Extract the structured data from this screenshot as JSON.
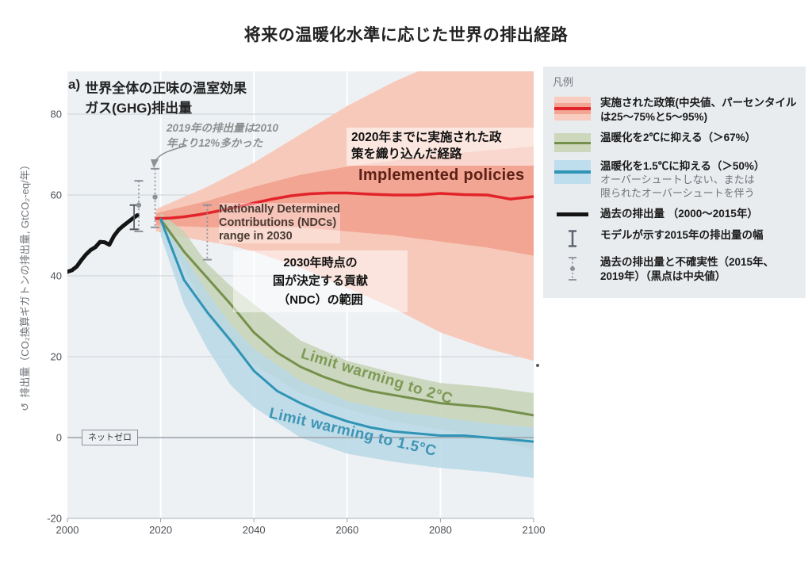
{
  "title": "将来の温暖化水準に応じた世界の排出経路",
  "panel": {
    "prefix": "a)",
    "title": "世界全体の正味の温室効果\nガス(GHG)排出量"
  },
  "annotations": {
    "note_2019": "2019年の排出量は2010\n年より12%多かった",
    "implemented_policies_jp": "2020年までに実施された政\n策を織り込んだ経路",
    "implemented_policies_en": "Implemented policies",
    "ndc_en": "Nationally Determined\nContributions (NDCs)\nrange in 2030",
    "ndc_jp": "2030年時点の\n国が決定する貢献\n（NDC）の範囲",
    "limit_2c": "Limit warming to 2°C",
    "limit_1_5c": "Limit warming to 1.5°C",
    "net_zero": "ネットゼロ"
  },
  "legend": {
    "title": "凡例",
    "items": [
      {
        "label": "実施された政策(中央値、パーセンタイル\nは25～75%と5～95%)"
      },
      {
        "label": "温暖化を2℃に抑える（＞67%）"
      },
      {
        "label": "温暖化を1.5℃に抑える（＞50%）",
        "sub": "オーバーシュートしない、または\n限られたオーバーシュートを伴う"
      },
      {
        "label": "過去の排出量 （2000～2015年）"
      },
      {
        "label": "モデルが示す2015年の排出量の幅"
      },
      {
        "label": "過去の排出量と不確実性（2015年、\n2019年）（黒点は中央値）"
      }
    ]
  },
  "colors": {
    "red_line": "#e2232a",
    "red_band_outer": "#f7c9ba",
    "red_band_inner": "#f1a592",
    "green_line": "#74904a",
    "green_band": "#c6d2b5",
    "blue_line": "#2f94b5",
    "blue_band": "#b7d8e6",
    "historical": "#141414",
    "plot_bg": "#edf1f4",
    "grid": "#ccd1d6",
    "zero_line": "#9aa0a8",
    "tick_text": "#4d5156"
  },
  "chart_data": {
    "type": "line",
    "title": "将来の温暖化水準に応じた世界の排出経路",
    "xlabel": "",
    "ylabel": "排出量（CO₂換算ギガトンの排出量, GtCO₂-eq/年）",
    "xlim": [
      2000,
      2100
    ],
    "ylim": [
      -20,
      90
    ],
    "x_ticks": [
      2000,
      2020,
      2040,
      2060,
      2080,
      2100
    ],
    "y_ticks": [
      -20,
      0,
      20,
      40,
      60,
      80
    ],
    "grid": true,
    "legend_position": "right",
    "series": [
      {
        "name": "過去の排出量（2000～2015年）",
        "color": "#141414",
        "width": 5,
        "x": [
          2000,
          2001,
          2002,
          2003,
          2004,
          2005,
          2006,
          2007,
          2008,
          2009,
          2010,
          2011,
          2012,
          2013,
          2014,
          2015
        ],
        "y": [
          41,
          41.4,
          42.3,
          43.9,
          45.3,
          46.4,
          47.1,
          48.4,
          48.3,
          47.7,
          49.9,
          51.4,
          52.4,
          53.3,
          54.2,
          55
        ]
      },
      {
        "name": "実施された政策（Implemented policies, 中央値）",
        "color": "#e2232a",
        "width": 3.5,
        "x": [
          2019,
          2022,
          2025,
          2028,
          2030,
          2033,
          2036,
          2040,
          2044,
          2048,
          2052,
          2056,
          2060,
          2065,
          2070,
          2075,
          2080,
          2085,
          2090,
          2095,
          2100
        ],
        "y": [
          54.2,
          54.3,
          54.6,
          55.1,
          55.5,
          56.2,
          56.9,
          58,
          59,
          59.8,
          60.3,
          60.5,
          60.5,
          60.2,
          60,
          60,
          60.4,
          60.1,
          60,
          59,
          59.6
        ],
        "bands": [
          {
            "label": "5～95%",
            "color": "#f7c9ba",
            "opacity": 1,
            "x": [
              2019,
              2025,
              2030,
              2035,
              2040,
              2045,
              2050,
              2055,
              2060,
              2065,
              2070,
              2075,
              2080,
              2085,
              2090,
              2095,
              2100
            ],
            "upper": [
              56.5,
              59.5,
              62,
              65,
              68,
              71.5,
              75,
              78.5,
              82,
              85,
              88,
              90.5,
              93,
              94.5,
              96,
              96.5,
              97
            ],
            "lower": [
              51,
              49.5,
              48.5,
              47.5,
              46,
              44,
              42,
              39.5,
              37,
              34.5,
              32,
              29,
              26,
              24,
              22,
              20.5,
              19
            ]
          },
          {
            "label": "25～75%",
            "color": "#f1a592",
            "opacity": 1,
            "x": [
              2019,
              2030,
              2040,
              2050,
              2060,
              2070,
              2080,
              2090,
              2100
            ],
            "upper": [
              55.5,
              58.5,
              62,
              65,
              67,
              68.5,
              70,
              71,
              72
            ],
            "lower": [
              52.5,
              52,
              52,
              52,
              51,
              50,
              48.5,
              47,
              45
            ]
          }
        ]
      },
      {
        "name": "温暖化を2℃に抑える（＞67%）",
        "color": "#74904a",
        "width": 3,
        "x": [
          2020,
          2025,
          2030,
          2035,
          2040,
          2045,
          2050,
          2055,
          2060,
          2065,
          2070,
          2075,
          2080,
          2085,
          2090,
          2095,
          2100
        ],
        "y": [
          54,
          46,
          39.5,
          33,
          26,
          21,
          17.5,
          15,
          13,
          11.5,
          10.5,
          9.5,
          8.5,
          8,
          7.5,
          6.5,
          5.5
        ],
        "bands": [
          {
            "label": "範囲",
            "color": "#c6d2b5",
            "opacity": 0.85,
            "x": [
              2020,
              2025,
              2030,
              2035,
              2040,
              2050,
              2060,
              2070,
              2080,
              2090,
              2100
            ],
            "upper": [
              55.5,
              51,
              43,
              37.5,
              33,
              24,
              19,
              16,
              13.5,
              12.5,
              11
            ],
            "lower": [
              52,
              42,
              30,
              23,
              18,
              11,
              7,
              4,
              2,
              0,
              -3
            ]
          }
        ]
      },
      {
        "name": "温暖化を1.5℃に抑える（＞50%）",
        "color": "#2f94b5",
        "width": 3,
        "x": [
          2020,
          2025,
          2030,
          2035,
          2040,
          2045,
          2050,
          2055,
          2060,
          2065,
          2070,
          2075,
          2080,
          2085,
          2090,
          2095,
          2100
        ],
        "y": [
          54,
          39,
          31,
          24,
          16.5,
          11.5,
          8.5,
          6,
          4,
          2.5,
          1.5,
          1,
          0.5,
          0.5,
          0,
          -0.5,
          -1
        ],
        "bands": [
          {
            "label": "範囲",
            "color": "#b7d8e6",
            "opacity": 0.85,
            "x": [
              2020,
              2025,
              2030,
              2035,
              2040,
              2050,
              2060,
              2070,
              2080,
              2090,
              2100
            ],
            "upper": [
              55,
              45,
              36,
              28,
              22,
              14,
              9,
              6.5,
              5,
              3.5,
              2.5
            ],
            "lower": [
              50,
              33,
              22,
              13,
              7.5,
              0,
              -4,
              -6,
              -7.5,
              -8.5,
              -10
            ]
          }
        ]
      }
    ],
    "error_bars": [
      {
        "name": "モデルが示す2015年の排出量の幅",
        "x": 2014.3,
        "low": 51.5,
        "high": 57.5,
        "style": "solid"
      },
      {
        "name": "過去の排出量と不確実性（2015年）",
        "x": 2015.3,
        "low": 51,
        "high": 63.5,
        "median": 57.5,
        "style": "dashed"
      },
      {
        "name": "過去の排出量と不確実性（2019年）",
        "x": 2018.8,
        "low": 52,
        "high": 66.5,
        "median": 59.5,
        "style": "dashed"
      },
      {
        "name": "2030年時点のNDCの範囲",
        "x": 2030,
        "low": 44,
        "high": 57.5,
        "style": "dashed"
      }
    ]
  }
}
